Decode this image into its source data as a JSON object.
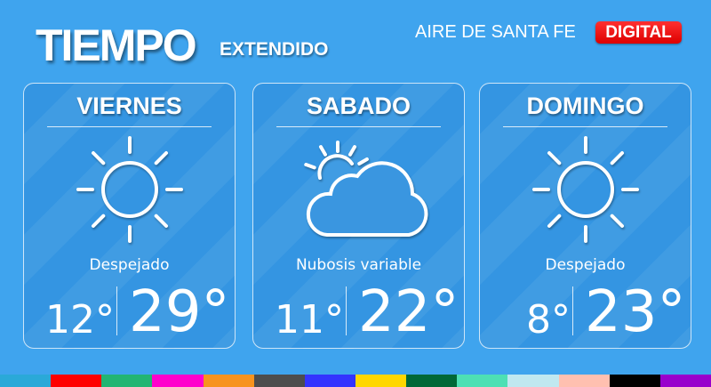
{
  "header": {
    "title": "TIEMPO",
    "subtitle": "EXTENDIDO",
    "brand": "AIRE DE SANTA FE",
    "badge": "DIGITAL",
    "badge_color": "#e60000"
  },
  "days": [
    {
      "day": "VIERNES",
      "icon": "sun-icon",
      "desc": "Despejado",
      "min": "12°",
      "max": "29°"
    },
    {
      "day": "SABADO",
      "icon": "partly-cloudy-icon",
      "desc": "Nubosis variable",
      "min": "11°",
      "max": "22°"
    },
    {
      "day": "DOMINGO",
      "icon": "sun-icon",
      "desc": "Despejado",
      "min": "8°",
      "max": "23°"
    }
  ],
  "strip_colors": [
    "#2aa9d8",
    "#ff0000",
    "#22b573",
    "#ff00cc",
    "#f7931e",
    "#4d4d4d",
    "#3333ff",
    "#ffd700",
    "#006837",
    "#4de0b4",
    "#c0e8f0",
    "#ffc0b0",
    "#000000",
    "#9900cc"
  ]
}
